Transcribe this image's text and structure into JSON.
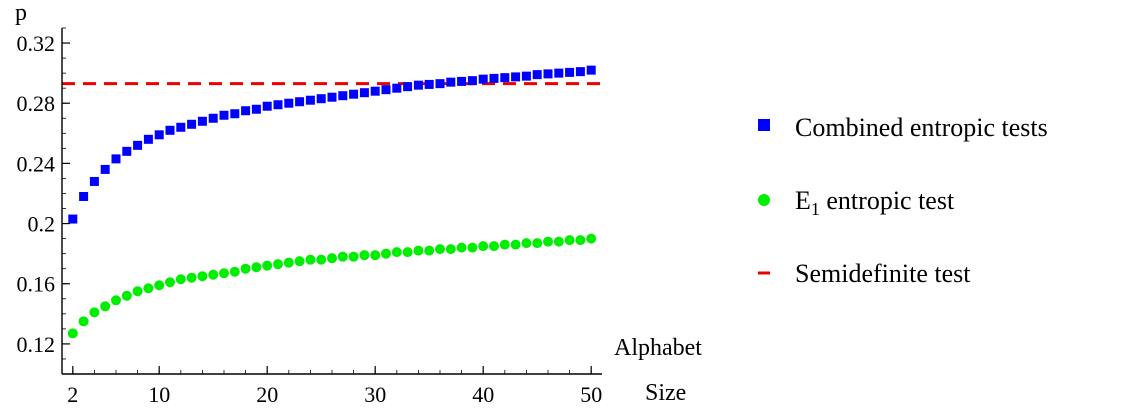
{
  "chart_data": {
    "type": "scatter",
    "title": "",
    "xlabel_line1": "Alphabet",
    "xlabel_line2": "Size",
    "ylabel": "p",
    "xlim": [
      1,
      51
    ],
    "ylim": [
      0.1,
      0.33
    ],
    "x_ticks": [
      2,
      10,
      20,
      30,
      40,
      50
    ],
    "x_tick_labels": [
      "2",
      "10",
      "20",
      "30",
      "40",
      "50"
    ],
    "y_ticks": [
      0.12,
      0.16,
      0.2,
      0.24,
      0.28,
      0.32
    ],
    "y_tick_labels": [
      "0.12",
      "0.16",
      "0.2",
      "0.24",
      "0.28",
      "0.32"
    ],
    "legend_position": "right",
    "series": [
      {
        "name": "Combined entropic tests",
        "marker": "square",
        "color": "#0000ff",
        "x": [
          2,
          3,
          4,
          5,
          6,
          7,
          8,
          9,
          10,
          11,
          12,
          13,
          14,
          15,
          16,
          17,
          18,
          19,
          20,
          21,
          22,
          23,
          24,
          25,
          26,
          27,
          28,
          29,
          30,
          31,
          32,
          33,
          34,
          35,
          36,
          37,
          38,
          39,
          40,
          41,
          42,
          43,
          44,
          45,
          46,
          47,
          48,
          49,
          50
        ],
        "y": [
          0.203,
          0.218,
          0.228,
          0.236,
          0.243,
          0.248,
          0.252,
          0.256,
          0.259,
          0.262,
          0.264,
          0.266,
          0.268,
          0.27,
          0.272,
          0.273,
          0.275,
          0.276,
          0.278,
          0.279,
          0.28,
          0.281,
          0.282,
          0.283,
          0.284,
          0.285,
          0.286,
          0.287,
          0.288,
          0.289,
          0.29,
          0.291,
          0.292,
          0.2925,
          0.293,
          0.294,
          0.2945,
          0.295,
          0.296,
          0.2965,
          0.297,
          0.2975,
          0.298,
          0.299,
          0.2995,
          0.3,
          0.3005,
          0.301,
          0.302
        ]
      },
      {
        "name": "E",
        "name_subscript": "1",
        "name_suffix": " entropic test",
        "marker": "circle",
        "color": "#00ee00",
        "x": [
          2,
          3,
          4,
          5,
          6,
          7,
          8,
          9,
          10,
          11,
          12,
          13,
          14,
          15,
          16,
          17,
          18,
          19,
          20,
          21,
          22,
          23,
          24,
          25,
          26,
          27,
          28,
          29,
          30,
          31,
          32,
          33,
          34,
          35,
          36,
          37,
          38,
          39,
          40,
          41,
          42,
          43,
          44,
          45,
          46,
          47,
          48,
          49,
          50
        ],
        "y": [
          0.127,
          0.135,
          0.141,
          0.145,
          0.149,
          0.152,
          0.155,
          0.157,
          0.159,
          0.161,
          0.163,
          0.164,
          0.165,
          0.166,
          0.167,
          0.168,
          0.17,
          0.171,
          0.172,
          0.173,
          0.174,
          0.175,
          0.176,
          0.176,
          0.177,
          0.178,
          0.178,
          0.179,
          0.179,
          0.18,
          0.181,
          0.181,
          0.182,
          0.182,
          0.183,
          0.183,
          0.184,
          0.184,
          0.185,
          0.185,
          0.186,
          0.186,
          0.187,
          0.187,
          0.188,
          0.188,
          0.189,
          0.189,
          0.19
        ]
      },
      {
        "name": "Semidefinite test",
        "marker": "dash",
        "color": "#ee0000",
        "line_style": "dashed",
        "x": [
          1,
          51
        ],
        "y": [
          0.293,
          0.293
        ]
      }
    ]
  }
}
